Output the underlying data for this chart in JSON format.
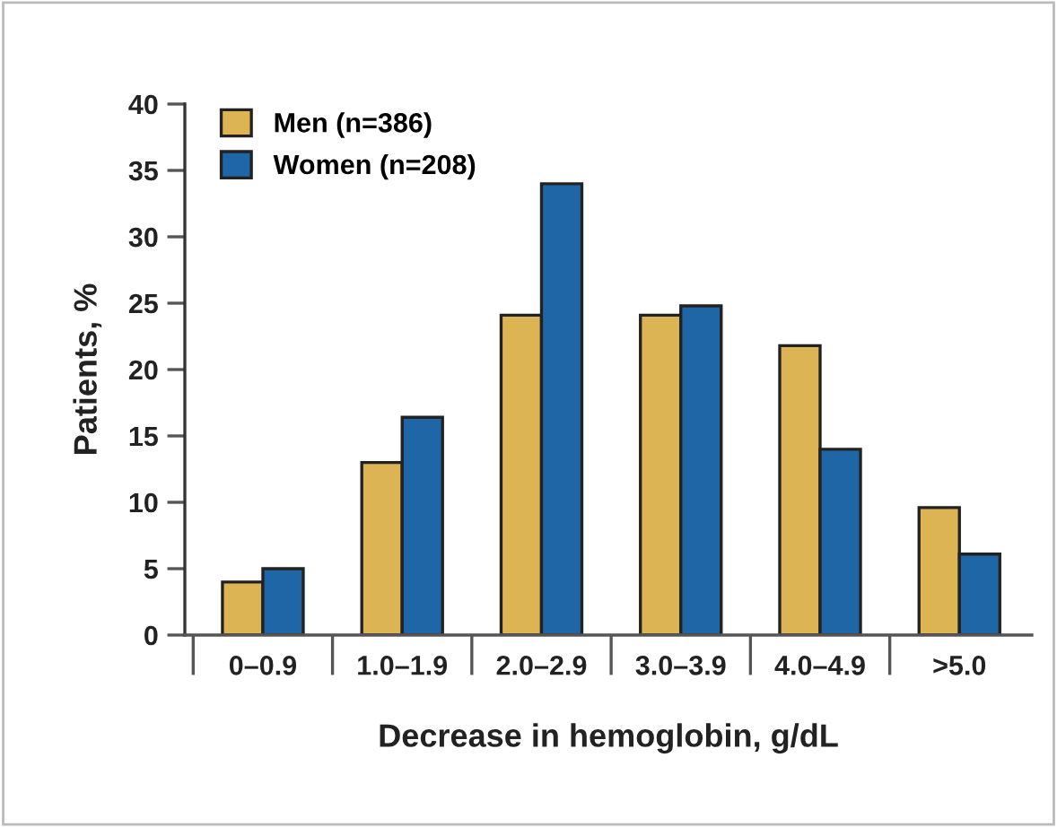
{
  "chart_data": {
    "type": "bar",
    "xlabel": "Decrease in hemoglobin, g/dL",
    "ylabel": "Patients, %",
    "categories": [
      "0–0.9",
      "1.0–1.9",
      "2.0–2.9",
      "3.0–3.9",
      "4.0–4.9",
      ">5.0"
    ],
    "series": [
      {
        "name": "Men (n=386)",
        "color": "#dcb453",
        "values": [
          4.0,
          13.0,
          24.1,
          24.1,
          21.8,
          9.6
        ]
      },
      {
        "name": "Women (n=208)",
        "color": "#1f66a6",
        "values": [
          5.0,
          16.4,
          34.0,
          24.8,
          14.0,
          6.1
        ]
      }
    ],
    "ylim": [
      0,
      40
    ],
    "yticks": [
      0,
      5,
      10,
      15,
      20,
      25,
      30,
      35,
      40
    ],
    "grid": false,
    "legend": "top left"
  }
}
